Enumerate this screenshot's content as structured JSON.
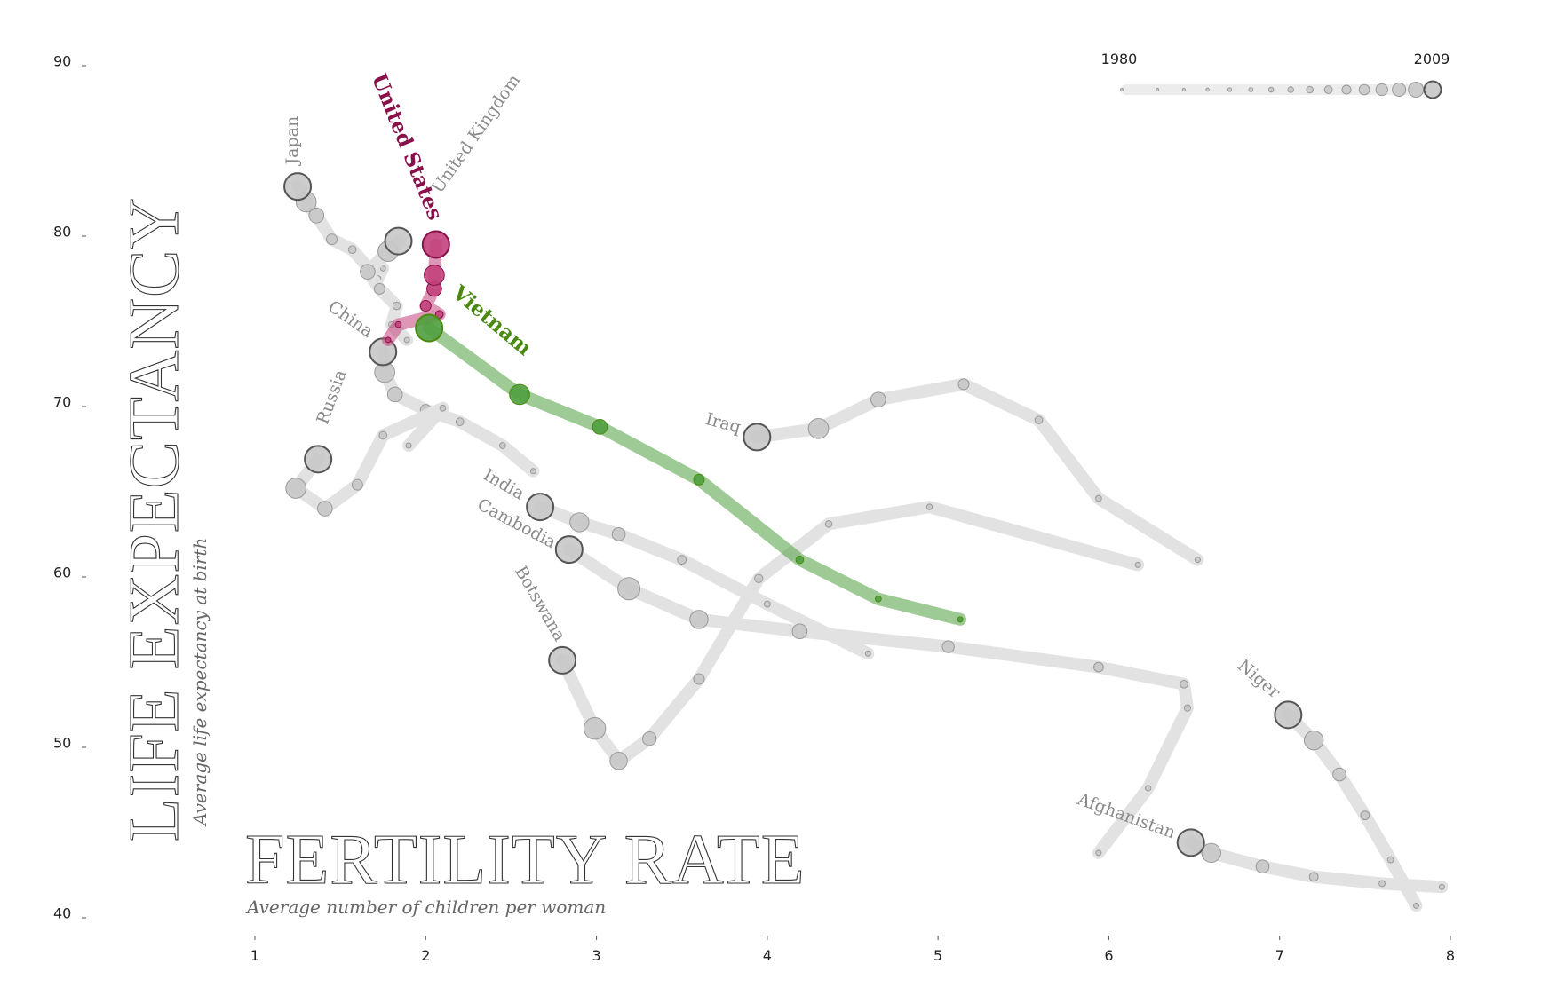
{
  "chart_data": {
    "type": "trail",
    "title": "LIFE EXPECTANCY",
    "y_subtitle": "Average life expectancy at birth",
    "x_title": "FERTILITY RATE",
    "x_subtitle": "Average number of children per woman",
    "legend": {
      "start": "1980",
      "end": "2009"
    },
    "xlim": [
      1,
      8
    ],
    "xticks": [
      1,
      2,
      3,
      4,
      5,
      6,
      7,
      8
    ],
    "ylim": [
      40,
      90
    ],
    "yticks": [
      40,
      50,
      60,
      70,
      80,
      90
    ],
    "series": [
      {
        "name": "Japan",
        "color": "#c8c8c8",
        "label_color": "#8a8a8a",
        "x": [
          1.75,
          1.72,
          1.57,
          1.45,
          1.36,
          1.3,
          1.25
        ],
        "values": [
          77.9,
          77.3,
          79.0,
          79.6,
          81.0,
          81.8,
          82.7
        ]
      },
      {
        "name": "United Kingdom",
        "color": "#c8c8c8",
        "label_color": "#8a8a8a",
        "x": [
          1.89,
          1.8,
          1.83,
          1.73,
          1.66,
          1.78,
          1.84
        ],
        "values": [
          73.7,
          74.6,
          75.7,
          76.7,
          77.7,
          78.9,
          79.5
        ]
      },
      {
        "name": "China",
        "color": "#c8c8c8",
        "label_color": "#8a8a8a",
        "x": [
          2.63,
          2.45,
          2.2,
          2.0,
          1.82,
          1.76,
          1.75
        ],
        "values": [
          66.0,
          67.5,
          68.9,
          69.6,
          70.5,
          71.8,
          73.0
        ]
      },
      {
        "name": "Russia",
        "color": "#c8c8c8",
        "label_color": "#8a8a8a",
        "x": [
          1.9,
          2.1,
          1.75,
          1.6,
          1.41,
          1.24,
          1.37
        ],
        "values": [
          67.5,
          69.7,
          68.1,
          65.2,
          63.8,
          65.0,
          66.7
        ]
      },
      {
        "name": "Iraq",
        "color": "#c8c8c8",
        "label_color": "#8a8a8a",
        "x": [
          6.52,
          5.94,
          5.59,
          5.15,
          4.65,
          4.3,
          3.94
        ],
        "values": [
          60.8,
          64.4,
          69.0,
          71.1,
          70.2,
          68.5,
          68.0
        ]
      },
      {
        "name": "India",
        "color": "#c8c8c8",
        "label_color": "#8a8a8a",
        "x": [
          4.59,
          4.0,
          3.5,
          3.13,
          2.9,
          2.67
        ],
        "values": [
          55.3,
          58.2,
          60.8,
          62.3,
          63.0,
          63.9
        ]
      },
      {
        "name": "Cambodia",
        "color": "#c8c8c8",
        "label_color": "#8a8a8a",
        "x": [
          5.94,
          6.23,
          6.46,
          6.44,
          5.94,
          5.06,
          4.19,
          3.6,
          3.19,
          2.84
        ],
        "values": [
          43.6,
          47.4,
          52.1,
          53.5,
          54.5,
          55.7,
          56.6,
          57.3,
          59.1,
          61.4
        ]
      },
      {
        "name": "Botswana",
        "color": "#c8c8c8",
        "label_color": "#8a8a8a",
        "x": [
          6.17,
          4.95,
          4.36,
          3.95,
          3.6,
          3.31,
          3.13,
          2.99,
          2.8
        ],
        "values": [
          60.5,
          63.9,
          62.9,
          59.7,
          53.8,
          50.3,
          49.0,
          50.9,
          54.9
        ]
      },
      {
        "name": "Niger",
        "color": "#c8c8c8",
        "label_color": "#8a8a8a",
        "x": [
          7.8,
          7.65,
          7.5,
          7.35,
          7.2,
          7.05
        ],
        "values": [
          40.5,
          43.2,
          45.8,
          48.2,
          50.2,
          51.7
        ]
      },
      {
        "name": "Afghanistan",
        "color": "#c8c8c8",
        "label_color": "#8a8a8a",
        "x": [
          7.95,
          7.6,
          7.2,
          6.9,
          6.6,
          6.48
        ],
        "values": [
          41.6,
          41.8,
          42.2,
          42.8,
          43.6,
          44.2
        ]
      },
      {
        "name": "United States",
        "color": "#c2417c",
        "label_color": "#8a1049",
        "x": [
          1.78,
          1.84,
          2.08,
          2.0,
          2.05,
          2.05,
          2.06
        ],
        "values": [
          73.7,
          74.6,
          75.2,
          75.7,
          76.7,
          77.5,
          79.3
        ]
      },
      {
        "name": "Vietnam",
        "color": "#4f9e3e",
        "label_color": "#4a8a10",
        "x": [
          5.13,
          4.65,
          4.19,
          3.6,
          3.02,
          2.55,
          2.02
        ],
        "values": [
          57.3,
          58.5,
          60.8,
          65.5,
          68.6,
          70.5,
          74.4
        ]
      }
    ]
  }
}
